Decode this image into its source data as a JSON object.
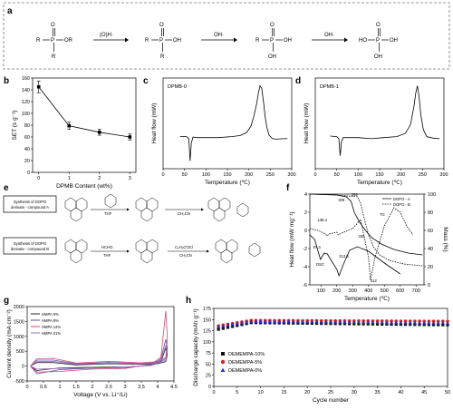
{
  "panels": {
    "a": {
      "label": "a",
      "chem": {
        "m1_R_left": "R",
        "m1_P": "P",
        "m1_O": "O",
        "m1_OR": "OR",
        "m1_R_bottom": "R",
        "arrow1_label": "(O)H·",
        "m2_R_left": "R",
        "m2_P": "P",
        "m2_O": "O",
        "m2_OH": "OH",
        "m2_R_bottom": "R",
        "arrow2_label": "OH·",
        "m3_R_left": "R",
        "m3_P": "P",
        "m3_O": "O",
        "m3_OH": "OH",
        "m3_OH_bottom": "OH",
        "arrow3_label": "OH·",
        "m4_HO": "HO",
        "m4_P": "P",
        "m4_O": "O",
        "m4_OH": "OH",
        "m4_OH_bottom": "OH"
      }
    },
    "b": {
      "label": "b"
    },
    "c": {
      "label": "c"
    },
    "d": {
      "label": "d"
    },
    "e": {
      "label": "e",
      "box1": [
        "Synthesis of DOPO",
        "derivate - compound A"
      ],
      "box2": [
        "Synthesis of DOPO",
        "derivate - compound B"
      ],
      "reagent1": "THF",
      "reagent2": "CH₃CN",
      "reagent3": "HCHO",
      "reagent4": "THF",
      "reagent5": "C₆H₅COCl",
      "reagent6": "CH₃CN"
    },
    "f": {
      "label": "f"
    },
    "g": {
      "label": "g"
    },
    "h": {
      "label": "h"
    }
  },
  "chart_data": [
    {
      "panel": "b",
      "type": "line",
      "xlabel": "DPMB Content (wt%)",
      "ylabel": "SET (s g⁻¹)",
      "x": [
        0,
        1,
        2,
        3
      ],
      "values": [
        145,
        79,
        68,
        60
      ],
      "errors": [
        10,
        6,
        5,
        5
      ],
      "xlim": [
        -0.2,
        3.2
      ],
      "ylim": [
        0,
        160
      ],
      "xticks": [
        "0",
        "1",
        "2",
        "3"
      ],
      "yticks": [
        "0",
        "20",
        "40",
        "60",
        "80",
        "100",
        "120",
        "140",
        "160"
      ]
    },
    {
      "panel": "c",
      "type": "line",
      "inset_label": "DPMB-0",
      "xlabel": "Temperature (℃)",
      "ylabel": "Heat flow (mW)",
      "xlim": [
        0,
        300
      ],
      "xticks": [
        "0",
        "50",
        "100",
        "150",
        "200",
        "250",
        "300"
      ],
      "x": [
        40,
        55,
        60,
        63,
        66,
        70,
        80,
        100,
        130,
        160,
        180,
        195,
        205,
        212,
        218,
        222,
        226,
        230,
        234,
        238,
        242,
        247,
        255,
        265,
        280,
        290
      ],
      "y": [
        0.02,
        0.02,
        -0.02,
        -0.45,
        -0.1,
        0.01,
        0.0,
        0.0,
        0.0,
        0.02,
        0.04,
        0.1,
        0.22,
        0.42,
        0.65,
        0.85,
        1.0,
        0.95,
        0.7,
        0.4,
        0.2,
        0.05,
        -0.02,
        -0.03,
        -0.02,
        -0.02
      ]
    },
    {
      "panel": "d",
      "type": "line",
      "inset_label": "DPMB-1",
      "xlabel": "Temperature (℃)",
      "ylabel": "Heat flow (mW)",
      "xlim": [
        0,
        300
      ],
      "xticks": [
        "0",
        "50",
        "100",
        "150",
        "200",
        "250",
        "300"
      ],
      "x": [
        35,
        50,
        55,
        58,
        61,
        65,
        80,
        100,
        130,
        160,
        190,
        210,
        222,
        230,
        234,
        238,
        242,
        246,
        252,
        260,
        275,
        290
      ],
      "y": [
        0.03,
        0.02,
        -0.02,
        -0.35,
        -0.08,
        0.0,
        0.0,
        0.0,
        -0.02,
        0.0,
        0.02,
        0.08,
        0.25,
        0.6,
        0.85,
        1.0,
        0.8,
        0.45,
        0.15,
        0.02,
        -0.01,
        -0.02
      ]
    },
    {
      "panel": "f",
      "type": "line",
      "xlabel": "Temperature (℃)",
      "ylabel": "Heat flow (mW mg⁻¹)",
      "ylabel2": "Mass (%)",
      "xlim": [
        30,
        750
      ],
      "ylim": [
        -6,
        4
      ],
      "ylim2": [
        0,
        100
      ],
      "xticks": [
        "100",
        "200",
        "300",
        "400",
        "500",
        "600",
        "700"
      ],
      "yticks": [
        "-6",
        "-4",
        "-2",
        "0",
        "2",
        "4"
      ],
      "yticks2": [
        "0",
        "20",
        "40",
        "60",
        "80",
        "100"
      ],
      "legend": [
        "DOPO - A",
        "DOPO - B"
      ],
      "annotations": [
        "292",
        "209",
        "138.4",
        "336",
        "97.3",
        "213.9",
        "412",
        "TG",
        "DSC"
      ],
      "series": [
        {
          "name": "DOPO - A",
          "role": "TG",
          "x": [
            30,
            200,
            260,
            290,
            310,
            340,
            380,
            420,
            480,
            560,
            650,
            740
          ],
          "y": [
            100,
            99,
            97,
            92,
            80,
            70,
            60,
            52,
            45,
            39,
            35,
            33
          ]
        },
        {
          "name": "DOPO - B",
          "role": "TG",
          "x": [
            30,
            200,
            330,
            350,
            370,
            400,
            430,
            470,
            530,
            620,
            740
          ],
          "y": [
            100,
            99,
            97,
            90,
            75,
            55,
            42,
            33,
            27,
            23,
            21
          ]
        },
        {
          "name": "DOPO - A",
          "role": "DSC",
          "x": [
            30,
            60,
            97,
            120,
            140,
            200,
            214,
            240,
            280,
            330,
            400,
            500,
            600
          ],
          "y": [
            -0.5,
            -1.0,
            -3.2,
            -2.5,
            -2.6,
            -4.3,
            -5.0,
            -3.8,
            -2.2,
            -1.8,
            -2.3,
            -3.6,
            -4.8
          ]
        },
        {
          "name": "DOPO - B",
          "role": "DSC",
          "x": [
            30,
            80,
            120,
            140,
            150,
            200,
            209,
            230,
            300,
            350,
            400,
            412,
            440,
            500,
            560,
            600,
            640,
            680
          ],
          "y": [
            0.2,
            0.0,
            -0.3,
            -0.6,
            -0.4,
            -0.2,
            -0.5,
            -0.3,
            0.2,
            1.2,
            -3.0,
            -5.5,
            -3.0,
            0.5,
            2.5,
            2.0,
            0.5,
            -0.5
          ]
        }
      ]
    },
    {
      "panel": "g",
      "type": "line",
      "xlabel": "Voltage (V vs. Li⁺/Li)",
      "ylabel": "Current density (mA cm⁻²)",
      "xlim": [
        0,
        4.5
      ],
      "ylim": [
        -500,
        2000
      ],
      "xticks": [
        "0",
        "0.5",
        "1",
        "1.5",
        "2",
        "2.5",
        "3",
        "3.5",
        "4",
        "4.5"
      ],
      "yticks": [
        "-500",
        "0",
        "500",
        "1000",
        "1500",
        "2000"
      ],
      "series": [
        {
          "name": "HMPA 0%",
          "color": "#222222",
          "x": [
            0.1,
            0.3,
            1.0,
            2.0,
            3.0,
            3.8,
            4.1,
            4.25,
            4.3,
            4.25,
            4.0,
            3.5,
            2.5,
            1.5,
            0.8,
            0.3,
            0.1
          ],
          "y": [
            0,
            -150,
            -60,
            -40,
            -30,
            20,
            150,
            600,
            400,
            150,
            80,
            60,
            80,
            40,
            120,
            120,
            0
          ]
        },
        {
          "name": "HMPA 8%",
          "color": "#5a4fa8",
          "x": [
            0.1,
            0.3,
            1.0,
            2.0,
            3.0,
            3.8,
            4.1,
            4.25,
            4.3,
            4.25,
            4.0,
            3.5,
            2.5,
            1.5,
            0.8,
            0.3,
            0.1
          ],
          "y": [
            0,
            -260,
            -120,
            -70,
            -50,
            40,
            250,
            900,
            600,
            250,
            120,
            90,
            120,
            80,
            200,
            200,
            0
          ]
        },
        {
          "name": "HMPA 14%",
          "color": "#d04a72",
          "x": [
            0.1,
            0.3,
            1.0,
            2.0,
            3.0,
            3.8,
            4.1,
            4.25,
            4.3,
            4.25,
            4.0,
            3.5,
            2.5,
            1.5,
            0.8,
            0.3,
            0.1
          ],
          "y": [
            0,
            -200,
            -180,
            -100,
            -80,
            60,
            300,
            1850,
            900,
            300,
            150,
            110,
            160,
            100,
            260,
            250,
            0
          ]
        },
        {
          "name": "HMPA 21%",
          "color": "#9a6fc0",
          "x": [
            0.1,
            0.3,
            1.0,
            2.0,
            3.0,
            3.8,
            4.1,
            4.25,
            4.3,
            4.25,
            4.0,
            3.5,
            2.5,
            1.5,
            0.8,
            0.3,
            0.1
          ],
          "y": [
            0,
            -100,
            -80,
            -60,
            -40,
            30,
            200,
            700,
            500,
            200,
            100,
            80,
            100,
            60,
            160,
            150,
            0
          ]
        }
      ]
    },
    {
      "panel": "h",
      "type": "scatter",
      "xlabel": "Cycle number",
      "ylabel": "Discharge capacity (mAh g⁻¹)",
      "xlim": [
        0,
        50
      ],
      "ylim": [
        0,
        175
      ],
      "xticks": [
        "0",
        "5",
        "10",
        "15",
        "20",
        "25",
        "30",
        "35",
        "40",
        "45",
        "50"
      ],
      "yticks": [
        "0",
        "25",
        "50",
        "75",
        "100",
        "125",
        "150",
        "175"
      ],
      "series": [
        {
          "name": "DEMEMPA-10%",
          "color": "#111111",
          "marker": "square",
          "start": 128,
          "plateau": 143,
          "end": 138
        },
        {
          "name": "DEMEMPA-5%",
          "color": "#e02020",
          "marker": "circle",
          "start": 136,
          "plateau": 148,
          "end": 146
        },
        {
          "name": "DEMEMPA-0%",
          "color": "#2030d0",
          "marker": "triangle",
          "start": 134,
          "plateau": 146,
          "end": 142
        }
      ]
    }
  ]
}
